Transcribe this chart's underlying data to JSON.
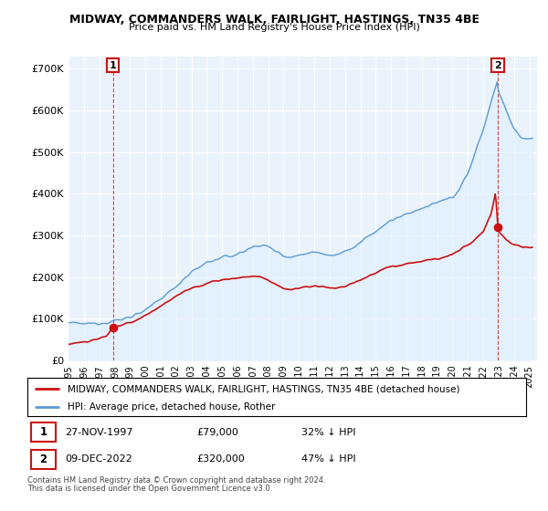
{
  "title": "MIDWAY, COMMANDERS WALK, FAIRLIGHT, HASTINGS, TN35 4BE",
  "subtitle": "Price paid vs. HM Land Registry's House Price Index (HPI)",
  "legend_line1": "MIDWAY, COMMANDERS WALK, FAIRLIGHT, HASTINGS, TN35 4BE (detached house)",
  "legend_line2": "HPI: Average price, detached house, Rother",
  "annotation1_date": "27-NOV-1997",
  "annotation1_price": "£79,000",
  "annotation1_hpi": "32% ↓ HPI",
  "annotation2_date": "09-DEC-2022",
  "annotation2_price": "£320,000",
  "annotation2_hpi": "47% ↓ HPI",
  "footnote1": "Contains HM Land Registry data © Crown copyright and database right 2024.",
  "footnote2": "This data is licensed under the Open Government Licence v3.0.",
  "hpi_color": "#5b9bd5",
  "hpi_fill_color": "#ddeeff",
  "price_color": "#cc1111",
  "annotation_color": "#cc1111",
  "ylim": [
    0,
    730000
  ],
  "yticks": [
    0,
    100000,
    200000,
    300000,
    400000,
    500000,
    600000,
    700000
  ],
  "ytick_labels": [
    "£0",
    "£100K",
    "£200K",
    "£300K",
    "£400K",
    "£500K",
    "£600K",
    "£700K"
  ],
  "xlim_start": 1995.0,
  "xlim_end": 2025.5,
  "sale1_x": 1997.9,
  "sale1_y": 79000,
  "sale2_x": 2022.95,
  "sale2_y": 320000,
  "background_color": "#ffffff",
  "plot_bg_color": "#eaf3fb",
  "grid_color": "#ffffff"
}
